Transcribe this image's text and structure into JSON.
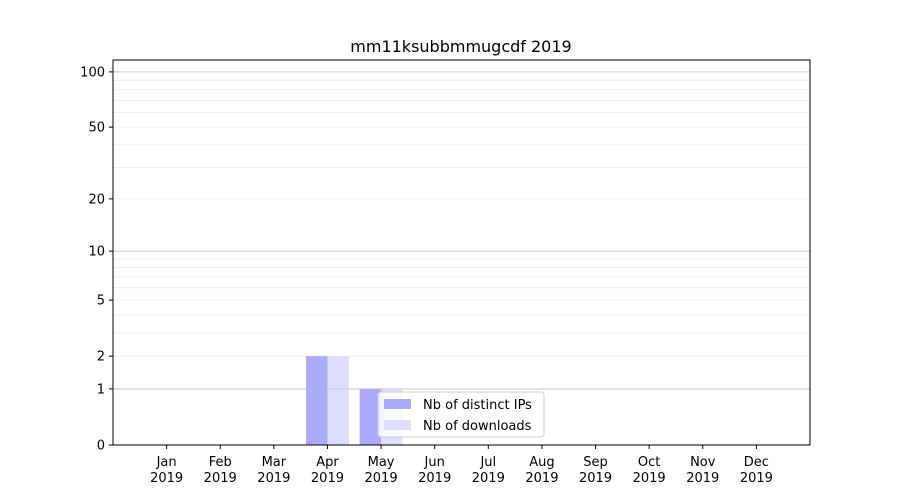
{
  "chart_data": {
    "type": "bar",
    "title": "mm11ksubbmmugcdf 2019",
    "xlabel": "",
    "ylabel": "",
    "categories": [
      "Jan\n2019",
      "Feb\n2019",
      "Mar\n2019",
      "Apr\n2019",
      "May\n2019",
      "Jun\n2019",
      "Jul\n2019",
      "Aug\n2019",
      "Sep\n2019",
      "Oct\n2019",
      "Nov\n2019",
      "Dec\n2019"
    ],
    "series": [
      {
        "name": "Nb of distinct IPs",
        "color": "#aaaaff",
        "values": [
          0,
          0,
          0,
          2,
          1,
          0,
          0,
          0,
          0,
          0,
          0,
          0
        ]
      },
      {
        "name": "Nb of downloads",
        "color": "#ddddff",
        "values": [
          0,
          0,
          0,
          2,
          1,
          0,
          0,
          0,
          0,
          0,
          0,
          0
        ]
      }
    ],
    "yscale": "log(1+y)",
    "ylim": [
      0,
      116
    ],
    "yticks": [
      0,
      1,
      2,
      5,
      10,
      20,
      50,
      100
    ],
    "grid": true,
    "legend": "lower-center"
  }
}
